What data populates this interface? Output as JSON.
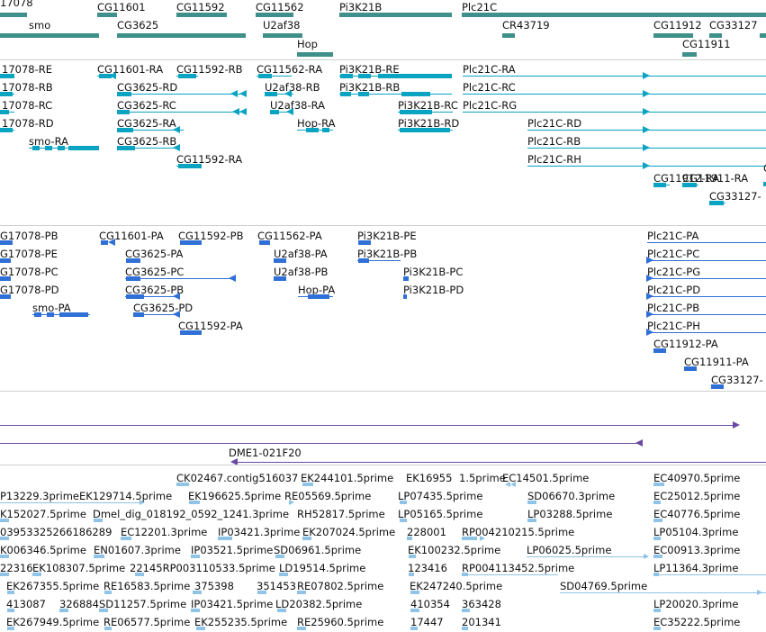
{
  "colors": {
    "gene": "#3f8f8a",
    "mrna": "#0aa3c2",
    "protein": "#2f6fd6",
    "clone": "#6a4aa0",
    "est": "#8fc4e6",
    "separator": "#d0d0d0"
  },
  "tracks": {
    "genes": [
      "17078",
      "CG11601",
      "CG11592",
      "CG11562",
      "Pi3K21B",
      "Plc21C",
      "smo",
      "CG3625",
      "U2af38",
      "CR43719",
      "CG11912",
      "CG33127",
      "Hop",
      "CG11911"
    ],
    "transcripts": [
      "17078-RE",
      "CG11601-RA",
      "CG11592-RB",
      "CG11562-RA",
      "Pi3K21B-RE",
      "Plc21C-RA",
      "17078-RB",
      "CG3625-RD",
      "U2af38-RB",
      "Pi3K21B-RB",
      "Plc21C-RC",
      "17078-RC",
      "CG3625-RC",
      "U2af38-RA",
      "Pi3K21B-RC",
      "Plc21C-RG",
      "17078-RD",
      "CG3625-RA",
      "Hop-RA",
      "Pi3K21B-RD",
      "Plc21C-RD",
      "smo-RA",
      "CG3625-RB",
      "Plc21C-RB",
      "CG11592-RA",
      "Plc21C-RH",
      "CG11912-RA",
      "CG11911-RA",
      "CG33127-"
    ],
    "proteins": [
      "G17078-PB",
      "CG11601-PA",
      "CG11592-PB",
      "CG11562-PA",
      "Pi3K21B-PE",
      "Plc21C-PA",
      "G17078-PE",
      "CG3625-PA",
      "U2af38-PA",
      "Pi3K21B-PB",
      "Plc21C-PC",
      "G17078-PC",
      "CG3625-PC",
      "U2af38-PB",
      "Pi3K21B-PC",
      "Plc21C-PG",
      "G17078-PD",
      "CG3625-PB",
      "Hop-PA",
      "Pi3K21B-PD",
      "Plc21C-PD",
      "smo-PA",
      "CG3625-PD",
      "Plc21C-PB",
      "CG11592-PA",
      "Plc21C-PH",
      "CG11912-PA",
      "CG11911-PA",
      "CG33127-"
    ],
    "clones": [
      "DME1-021F20"
    ],
    "ests": [
      "CK02467.contig516037",
      "EK244101.5prime",
      "EK16955",
      "1.5prime",
      "EC14501.5prime",
      "EC40970.5prime",
      "P13229.3prime",
      "EK129714.5prime",
      "EK196625.5prime",
      "RE05569.5prime",
      "LP07435.5prime",
      "SD06670.3prime",
      "EC25012.5prime",
      "K152027.5prime",
      "Dmel_dig_018192_0592_1241.3prime",
      "RH52817.5prime",
      "LP05165.5prime",
      "LP03288.5prime",
      "EC40776.5prime",
      "03953325266186289",
      "EC12201.3prime",
      "IP03421.3prime",
      "EK207024.5prime",
      "228001",
      "RP004210215.5prime",
      "LP05104.3prime",
      "K006346.5prime",
      "EN01607.3prime",
      "IP03521.5prime",
      "SD06961.5prime",
      "EK100232.5prime",
      "LP06025.5prime",
      "EC00913.3prime",
      "22316",
      "EK108307.5prime",
      "22145RP003110533.5prime",
      "LD19514.5prime",
      "123416",
      "RP004113452.5prime",
      "LP11364.3prime",
      "EK267355.5prime",
      "RE16583.5prime",
      "375398",
      "351453",
      "RE07802.5prime",
      "EK247240.5prime",
      "SD04769.5prime",
      "413087",
      "326884",
      "SD11257.5prime",
      "IP03421.5prime",
      "LD20382.5prime",
      "410354",
      "363428",
      "LP20020.3prime",
      "EK267949.5prime",
      "RE06577.5prime",
      "EK255235.5prime",
      "RE25960.5prime",
      "17447",
      "201341",
      "EC35222.5prime"
    ]
  }
}
